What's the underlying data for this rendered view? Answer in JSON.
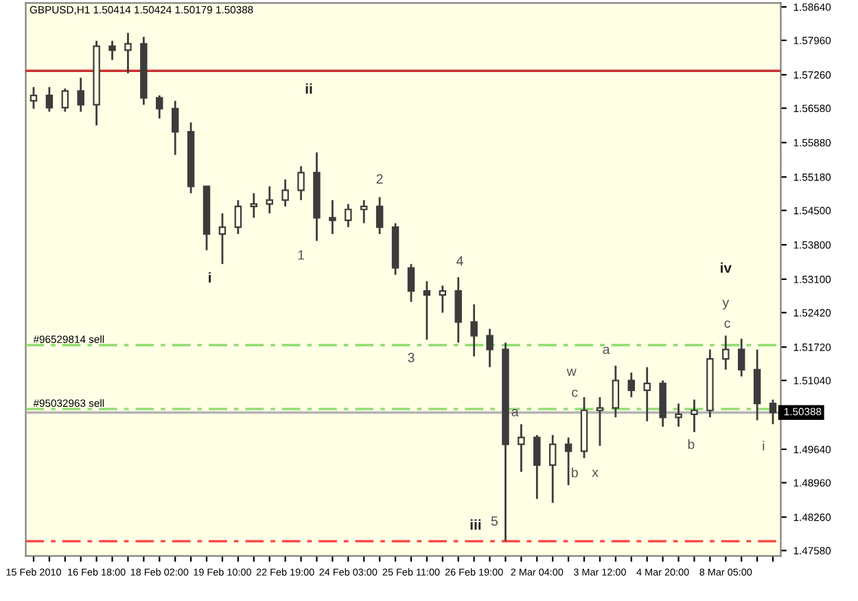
{
  "chart_data": {
    "type": "candlestick",
    "title": "GBPUSD,H1 1.50414 1.50424 1.50179 1.50388",
    "categories": [
      "15 Feb 2010",
      null,
      null,
      null,
      "16 Feb 18:00",
      null,
      null,
      null,
      "18 Feb 02:00",
      null,
      null,
      null,
      "19 Feb 10:00",
      null,
      null,
      null,
      "22 Feb 19:00",
      null,
      null,
      null,
      "24 Feb 03:00",
      null,
      null,
      null,
      "25 Feb 11:00",
      null,
      null,
      null,
      "26 Feb 19:00",
      null,
      null,
      null,
      "2 Mar 04:00",
      null,
      null,
      null,
      "3 Mar 12:00",
      null,
      null,
      null,
      "4 Mar 20:00",
      null,
      null,
      null,
      "8 Mar 05:00",
      null,
      null,
      null
    ],
    "color": "#3c3c3c",
    "ohlc": [
      [
        1.5673,
        1.5701,
        1.5657,
        1.5684
      ],
      [
        1.5684,
        1.5701,
        1.5651,
        1.5659
      ],
      [
        1.5659,
        1.5698,
        1.5651,
        1.5693
      ],
      [
        1.5693,
        1.572,
        1.5651,
        1.5665
      ],
      [
        1.5665,
        1.5795,
        1.5623,
        1.5784
      ],
      [
        1.5784,
        1.5795,
        1.5756,
        1.5776
      ],
      [
        1.5776,
        1.5811,
        1.5729,
        1.5789
      ],
      [
        1.5789,
        1.5803,
        1.5665,
        1.5679
      ],
      [
        1.5679,
        1.5684,
        1.5637,
        1.5657
      ],
      [
        1.5657,
        1.5673,
        1.5563,
        1.561
      ],
      [
        1.561,
        1.5629,
        1.5485,
        1.5499
      ],
      [
        1.5499,
        1.5499,
        1.5369,
        1.5402
      ],
      [
        1.5402,
        1.5444,
        1.5341,
        1.5416
      ],
      [
        1.5416,
        1.5471,
        1.5402,
        1.5458
      ],
      [
        1.5458,
        1.5485,
        1.5435,
        1.5463
      ],
      [
        1.5463,
        1.5499,
        1.5444,
        1.5471
      ],
      [
        1.5471,
        1.5513,
        1.5458,
        1.5491
      ],
      [
        1.5491,
        1.554,
        1.5471,
        1.5527
      ],
      [
        1.5527,
        1.5568,
        1.5388,
        1.5435
      ],
      [
        1.5435,
        1.5471,
        1.5402,
        1.543
      ],
      [
        1.543,
        1.5463,
        1.5416,
        1.5452
      ],
      [
        1.5452,
        1.5471,
        1.5424,
        1.5458
      ],
      [
        1.5458,
        1.5477,
        1.5402,
        1.5416
      ],
      [
        1.5416,
        1.5424,
        1.5319,
        1.5333
      ],
      [
        1.5333,
        1.5341,
        1.5264,
        1.5286
      ],
      [
        1.5286,
        1.5306,
        1.5187,
        1.5278
      ],
      [
        1.5278,
        1.5297,
        1.5242,
        1.5286
      ],
      [
        1.5286,
        1.5314,
        1.5181,
        1.5223
      ],
      [
        1.5223,
        1.5259,
        1.5153,
        1.5195
      ],
      [
        1.5195,
        1.5209,
        1.5131,
        1.5167
      ],
      [
        1.5167,
        1.5181,
        1.4777,
        1.4974
      ],
      [
        1.4974,
        1.5015,
        1.4918,
        1.4988
      ],
      [
        1.4988,
        1.4993,
        1.4863,
        1.4932
      ],
      [
        1.4932,
        1.4993,
        1.4855,
        1.4974
      ],
      [
        1.4974,
        1.4988,
        1.4891,
        1.496
      ],
      [
        1.496,
        1.507,
        1.4946,
        1.5043
      ],
      [
        1.5043,
        1.507,
        1.4971,
        1.5048
      ],
      [
        1.5048,
        1.5134,
        1.5029,
        1.5104
      ],
      [
        1.5104,
        1.512,
        1.507,
        1.5084
      ],
      [
        1.5084,
        1.5131,
        1.5021,
        1.5098
      ],
      [
        1.5098,
        1.5104,
        1.501,
        1.5029
      ],
      [
        1.5029,
        1.5057,
        1.501,
        1.5035
      ],
      [
        1.5035,
        1.5065,
        1.4999,
        1.5043
      ],
      [
        1.5043,
        1.5167,
        1.5029,
        1.5148
      ],
      [
        1.5148,
        1.5195,
        1.5126,
        1.5167
      ],
      [
        1.5167,
        1.5189,
        1.5112,
        1.5126
      ],
      [
        1.5126,
        1.5167,
        1.5023,
        1.5057
      ],
      [
        1.5057,
        1.5065,
        1.5015,
        1.5039
      ]
    ],
    "ylim": [
      1.4747,
      1.5872
    ],
    "yticks": [
      {
        "value": 1.5864,
        "label": "1.58640"
      },
      {
        "value": 1.5796,
        "label": "1.57960"
      },
      {
        "value": 1.5726,
        "label": "1.57260"
      },
      {
        "value": 1.5658,
        "label": "1.56580"
      },
      {
        "value": 1.5588,
        "label": "1.55880"
      },
      {
        "value": 1.5518,
        "label": "1.55180"
      },
      {
        "value": 1.545,
        "label": "1.54500"
      },
      {
        "value": 1.538,
        "label": "1.53800"
      },
      {
        "value": 1.531,
        "label": "1.53100"
      },
      {
        "value": 1.5242,
        "label": "1.52420"
      },
      {
        "value": 1.5172,
        "label": "1.51720"
      },
      {
        "value": 1.5104,
        "label": "1.51040"
      },
      {
        "value": 1.4964,
        "label": "1.49640"
      },
      {
        "value": 1.4896,
        "label": "1.48960"
      },
      {
        "value": 1.4826,
        "label": "1.48260"
      },
      {
        "value": 1.4758,
        "label": "1.47580"
      }
    ],
    "ref_lines": [
      {
        "axis": "y",
        "value": 1.5734,
        "color": "#c83232",
        "line_style": "solid"
      },
      {
        "axis": "y",
        "value": 1.5176,
        "label": "#96529814 sell",
        "color": "#90dc70",
        "line_style": "dashdot"
      },
      {
        "axis": "y",
        "value": 1.5046,
        "label": "#95032963 sell",
        "color": "#90dc70",
        "line_style": "dashdot"
      },
      {
        "axis": "y",
        "value": 1.50388,
        "label": "1.50388",
        "color": "#b4b4b4",
        "line_style": "solid"
      },
      {
        "axis": "y",
        "value": 1.4777,
        "color": "#ff4040",
        "line_style": "dashdot"
      }
    ],
    "annotations": [
      "i",
      "ii",
      "1",
      "2",
      "3",
      "4",
      "iii",
      "5",
      "a",
      "w",
      "c",
      "b",
      "x",
      "a",
      "b",
      "iv",
      "y",
      "c",
      "i"
    ],
    "grid": false
  }
}
